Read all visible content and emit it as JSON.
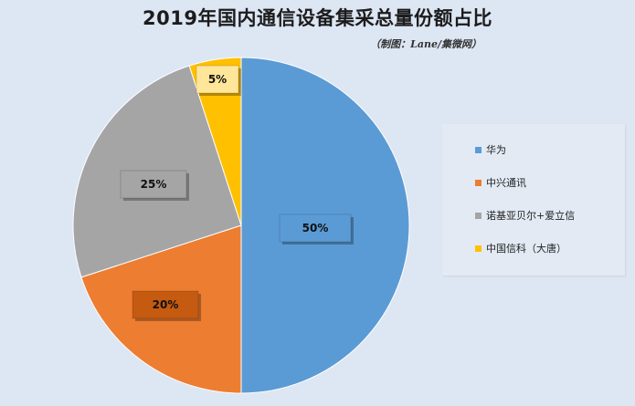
{
  "title": "2019年国内通信设备集采总量份额占比",
  "subtitle": "（制图：Lane/集微网）",
  "chart_data": {
    "type": "pie",
    "title": "2019年国内通信设备集采总量份额占比",
    "start_angle_deg": 0,
    "direction": "clockwise",
    "legend_position": "right",
    "slices": [
      {
        "name": "华为",
        "value": 50,
        "label": "50%",
        "color": "#5b9bd5",
        "label_bg": "#5b9bd5",
        "label_color": "#111111"
      },
      {
        "name": "中兴通讯",
        "value": 20,
        "label": "20%",
        "color": "#ed7d31",
        "label_bg": "#c55a11",
        "label_color": "#111111"
      },
      {
        "name": "诺基亚贝尔+爱立信",
        "value": 25,
        "label": "25%",
        "color": "#a5a5a5",
        "label_bg": "#a5a5a5",
        "label_color": "#111111"
      },
      {
        "name": "中国信科（大唐）",
        "value": 5,
        "label": "5%",
        "color": "#ffc000",
        "label_bg": "#ffe699",
        "label_color": "#111111"
      }
    ]
  }
}
